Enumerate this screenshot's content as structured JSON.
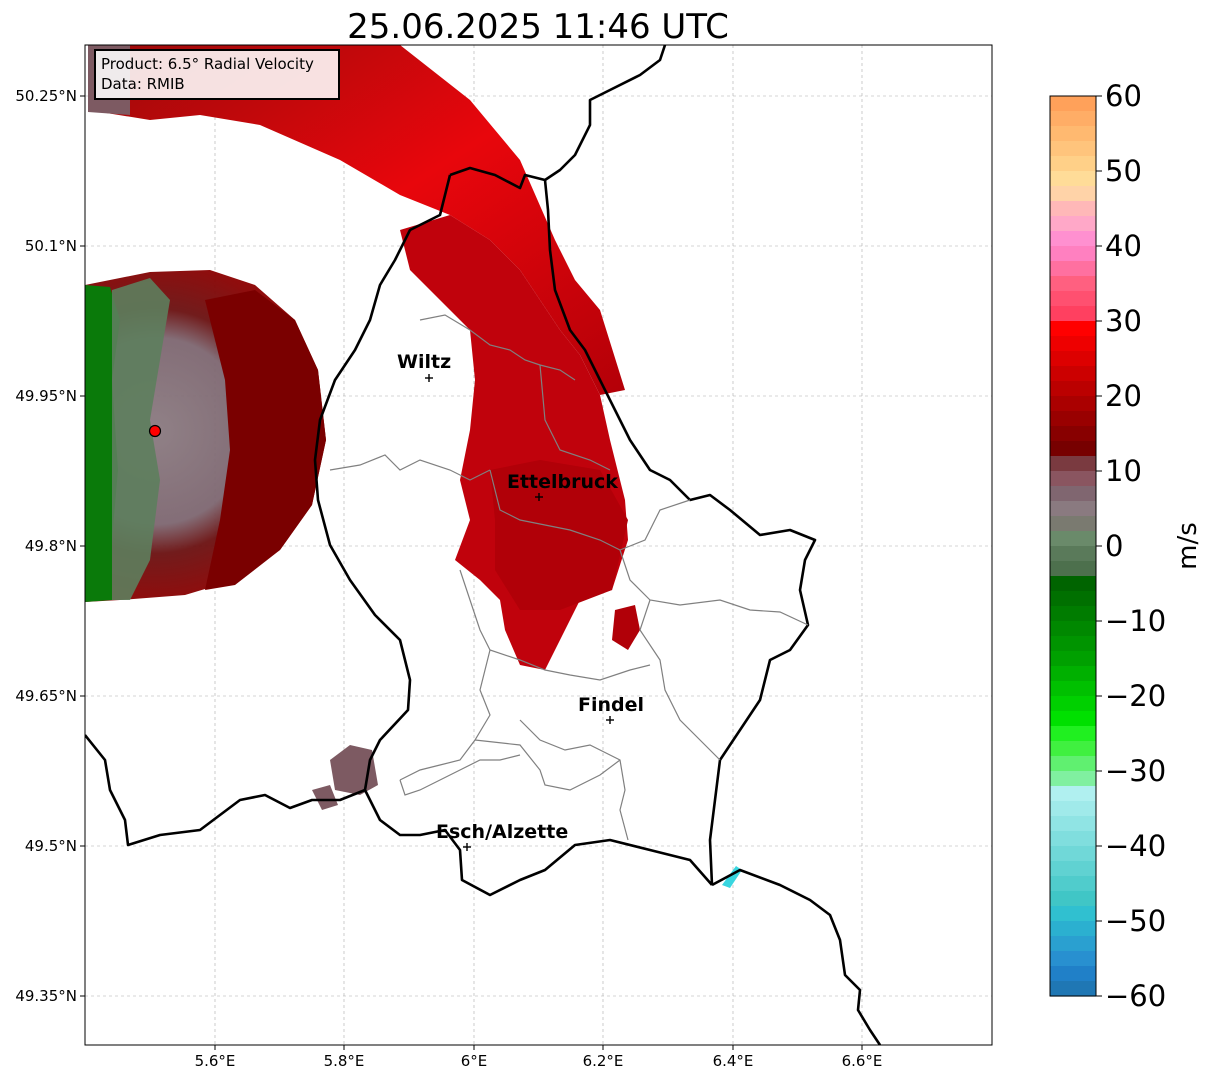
{
  "title": "25.06.2025 11:46 UTC",
  "info_box": {
    "product_line": "Product: 6.5° Radial Velocity",
    "data_line": "Data: RMIB"
  },
  "map": {
    "lon_ticks": [
      "5.6°E",
      "5.8°E",
      "6°E",
      "6.2°E",
      "6.4°E",
      "6.6°E"
    ],
    "lat_ticks": [
      "50.25°N",
      "50.1°N",
      "49.95°N",
      "49.8°N",
      "49.65°N",
      "49.5°N",
      "49.35°N"
    ],
    "cities": [
      {
        "name": "Wiltz"
      },
      {
        "name": "Ettelbruck"
      },
      {
        "name": "Findel"
      },
      {
        "name": "Esch/Alzette"
      }
    ],
    "radar_site": "radar-site-marker",
    "grid": true
  },
  "colorbar": {
    "ticks": [
      "60",
      "50",
      "40",
      "30",
      "20",
      "10",
      "0",
      "−10",
      "−20",
      "−30",
      "−40",
      "−50",
      "−60"
    ],
    "label": "m/s",
    "min": -60,
    "max": 60
  }
}
